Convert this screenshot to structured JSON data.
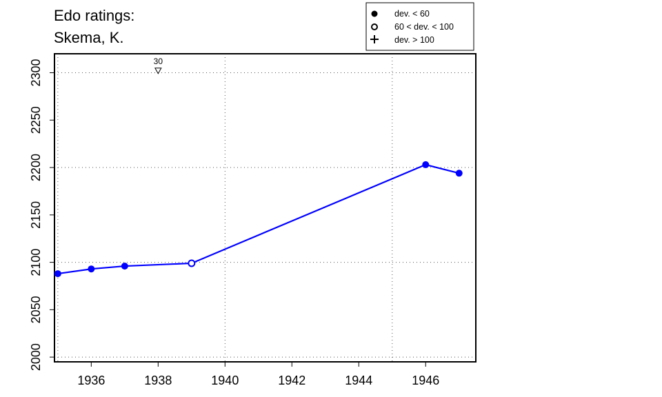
{
  "chart_data": {
    "type": "line",
    "title_lines": [
      "Edo ratings:",
      "Skema, K."
    ],
    "xlabel": "",
    "ylabel": "",
    "xlim": [
      1934.9,
      1947.5
    ],
    "ylim": [
      1995,
      2320
    ],
    "x_ticks": [
      1936,
      1938,
      1940,
      1942,
      1944,
      1946
    ],
    "y_ticks": [
      2000,
      2050,
      2100,
      2150,
      2200,
      2250,
      2300
    ],
    "x_grid": [
      1935,
      1940,
      1945
    ],
    "y_grid": [
      2000,
      2100,
      2200,
      2300
    ],
    "grid": true,
    "series": [
      {
        "color": "#0000ff",
        "points": [
          {
            "x": 1935,
            "y": 2088,
            "dev": "lt60"
          },
          {
            "x": 1936,
            "y": 2093,
            "dev": "lt60"
          },
          {
            "x": 1937,
            "y": 2096,
            "dev": "lt60"
          },
          {
            "x": 1939,
            "y": 2099,
            "dev": "60to100"
          },
          {
            "x": 1946,
            "y": 2203,
            "dev": "lt60"
          },
          {
            "x": 1947,
            "y": 2194,
            "dev": "lt60"
          }
        ]
      }
    ],
    "annotations": [
      {
        "x": 1938,
        "y": 2302,
        "label": "30",
        "marker": "down-triangle"
      }
    ],
    "legend": {
      "position": "top-right",
      "entries": [
        {
          "symbol": "filled-circle",
          "label": "dev. < 60"
        },
        {
          "symbol": "open-circle",
          "label": "60 < dev. < 100"
        },
        {
          "symbol": "plus",
          "label": "dev. > 100"
        }
      ]
    }
  }
}
